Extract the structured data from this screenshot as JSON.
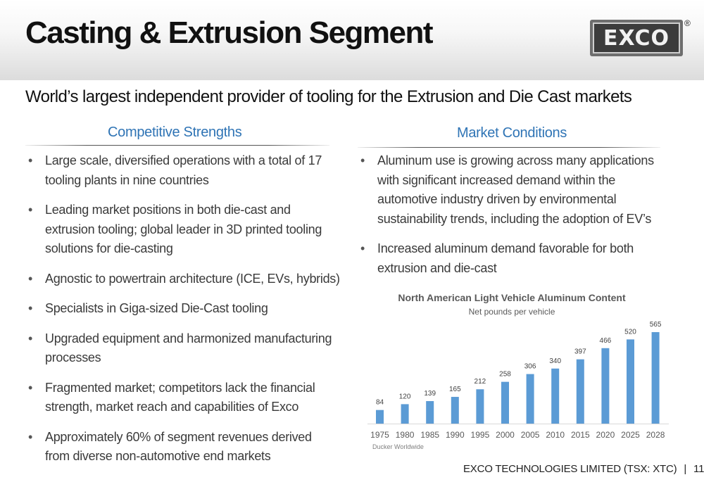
{
  "header": {
    "title": "Casting & Extrusion Segment",
    "logo_text": "EXCO",
    "registered_mark": "®"
  },
  "subtitle": "World’s largest independent provider of tooling for the Extrusion and Die Cast markets",
  "left_column": {
    "heading": "Competitive Strengths",
    "bullets": [
      [
        "Large scale, diversified operations with a total of 17",
        "tooling plants in nine countries"
      ],
      [
        "Leading market positions in both die-cast and",
        "extrusion tooling; global leader in 3D printed tooling",
        "solutions for die-casting"
      ],
      [
        "Agnostic to powertrain architecture (ICE, EVs, hybrids)"
      ],
      [
        "Specialists in Giga-sized Die-Cast tooling"
      ],
      [
        "Upgraded equipment and harmonized manufacturing",
        "processes"
      ],
      [
        "Fragmented market; competitors lack the financial",
        "strength, market reach and capabilities of Exco"
      ],
      [
        "Approximately 60% of segment revenues derived",
        "from diverse non-automotive end markets"
      ]
    ]
  },
  "right_column": {
    "heading": "Market Conditions",
    "bullets": [
      [
        "Aluminum use is growing across many applications",
        "with significant increased demand within the",
        "automotive industry driven by environmental",
        "sustainability trends, including the adoption of EV’s"
      ],
      [
        "Increased aluminum demand favorable for both",
        "extrusion and die-cast"
      ]
    ]
  },
  "chart_data": {
    "type": "bar",
    "title": "North American Light Vehicle Aluminum Content",
    "subtitle": "Net pounds per vehicle",
    "source": "Ducker Worldwide",
    "categories": [
      "1975",
      "1980",
      "1985",
      "1990",
      "1995",
      "2000",
      "2005",
      "2010",
      "2015",
      "2020",
      "2025",
      "2028"
    ],
    "values": [
      84,
      120,
      139,
      165,
      212,
      258,
      306,
      340,
      397,
      466,
      520,
      565
    ],
    "ylim": [
      0,
      600
    ],
    "grid": false,
    "bar_color": "#5b9bd5"
  },
  "footer": {
    "company": "EXCO TECHNOLOGIES LIMITED (TSX: XTC)",
    "separator": "|",
    "page_number": "11"
  },
  "colors": {
    "heading_blue": "#2f74b5",
    "bar_blue": "#5b9bd5"
  }
}
